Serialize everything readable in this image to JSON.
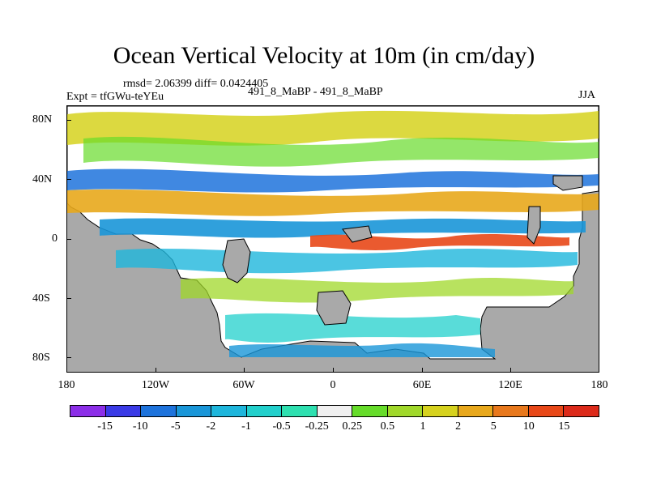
{
  "map": {
    "title": "Ocean Vertical Velocity at 10m (in cm/day)",
    "stats": "rmsd= 2.06399 diff= 0.0424405",
    "experiment": "Expt = tfGWu-teYEu",
    "comparison": "491_8_MaBP - 491_8_MaBP",
    "season": "JJA",
    "lat_labels": [
      "80N",
      "40N",
      "0",
      "40S",
      "80S"
    ],
    "lon_labels": [
      "180",
      "120W",
      "60W",
      "0",
      "60E",
      "120E",
      "180"
    ],
    "land_color": "#a9a9a9",
    "ocean_color": "#ffffff"
  },
  "colorbar": {
    "labels": [
      "-15",
      "-10",
      "-5",
      "-2",
      "-1",
      "-0.5",
      "-0.25",
      "0.25",
      "0.5",
      "1",
      "2",
      "5",
      "10",
      "15"
    ],
    "colors": [
      "#8c2ee8",
      "#3a3ae6",
      "#1e73dc",
      "#1996d8",
      "#1eb6dc",
      "#22d0cc",
      "#2ee0b0",
      "#f0f0f0",
      "#66dc2a",
      "#a0d82a",
      "#d6d21e",
      "#e8a81c",
      "#e8781c",
      "#e84818",
      "#dc2a1a"
    ]
  }
}
